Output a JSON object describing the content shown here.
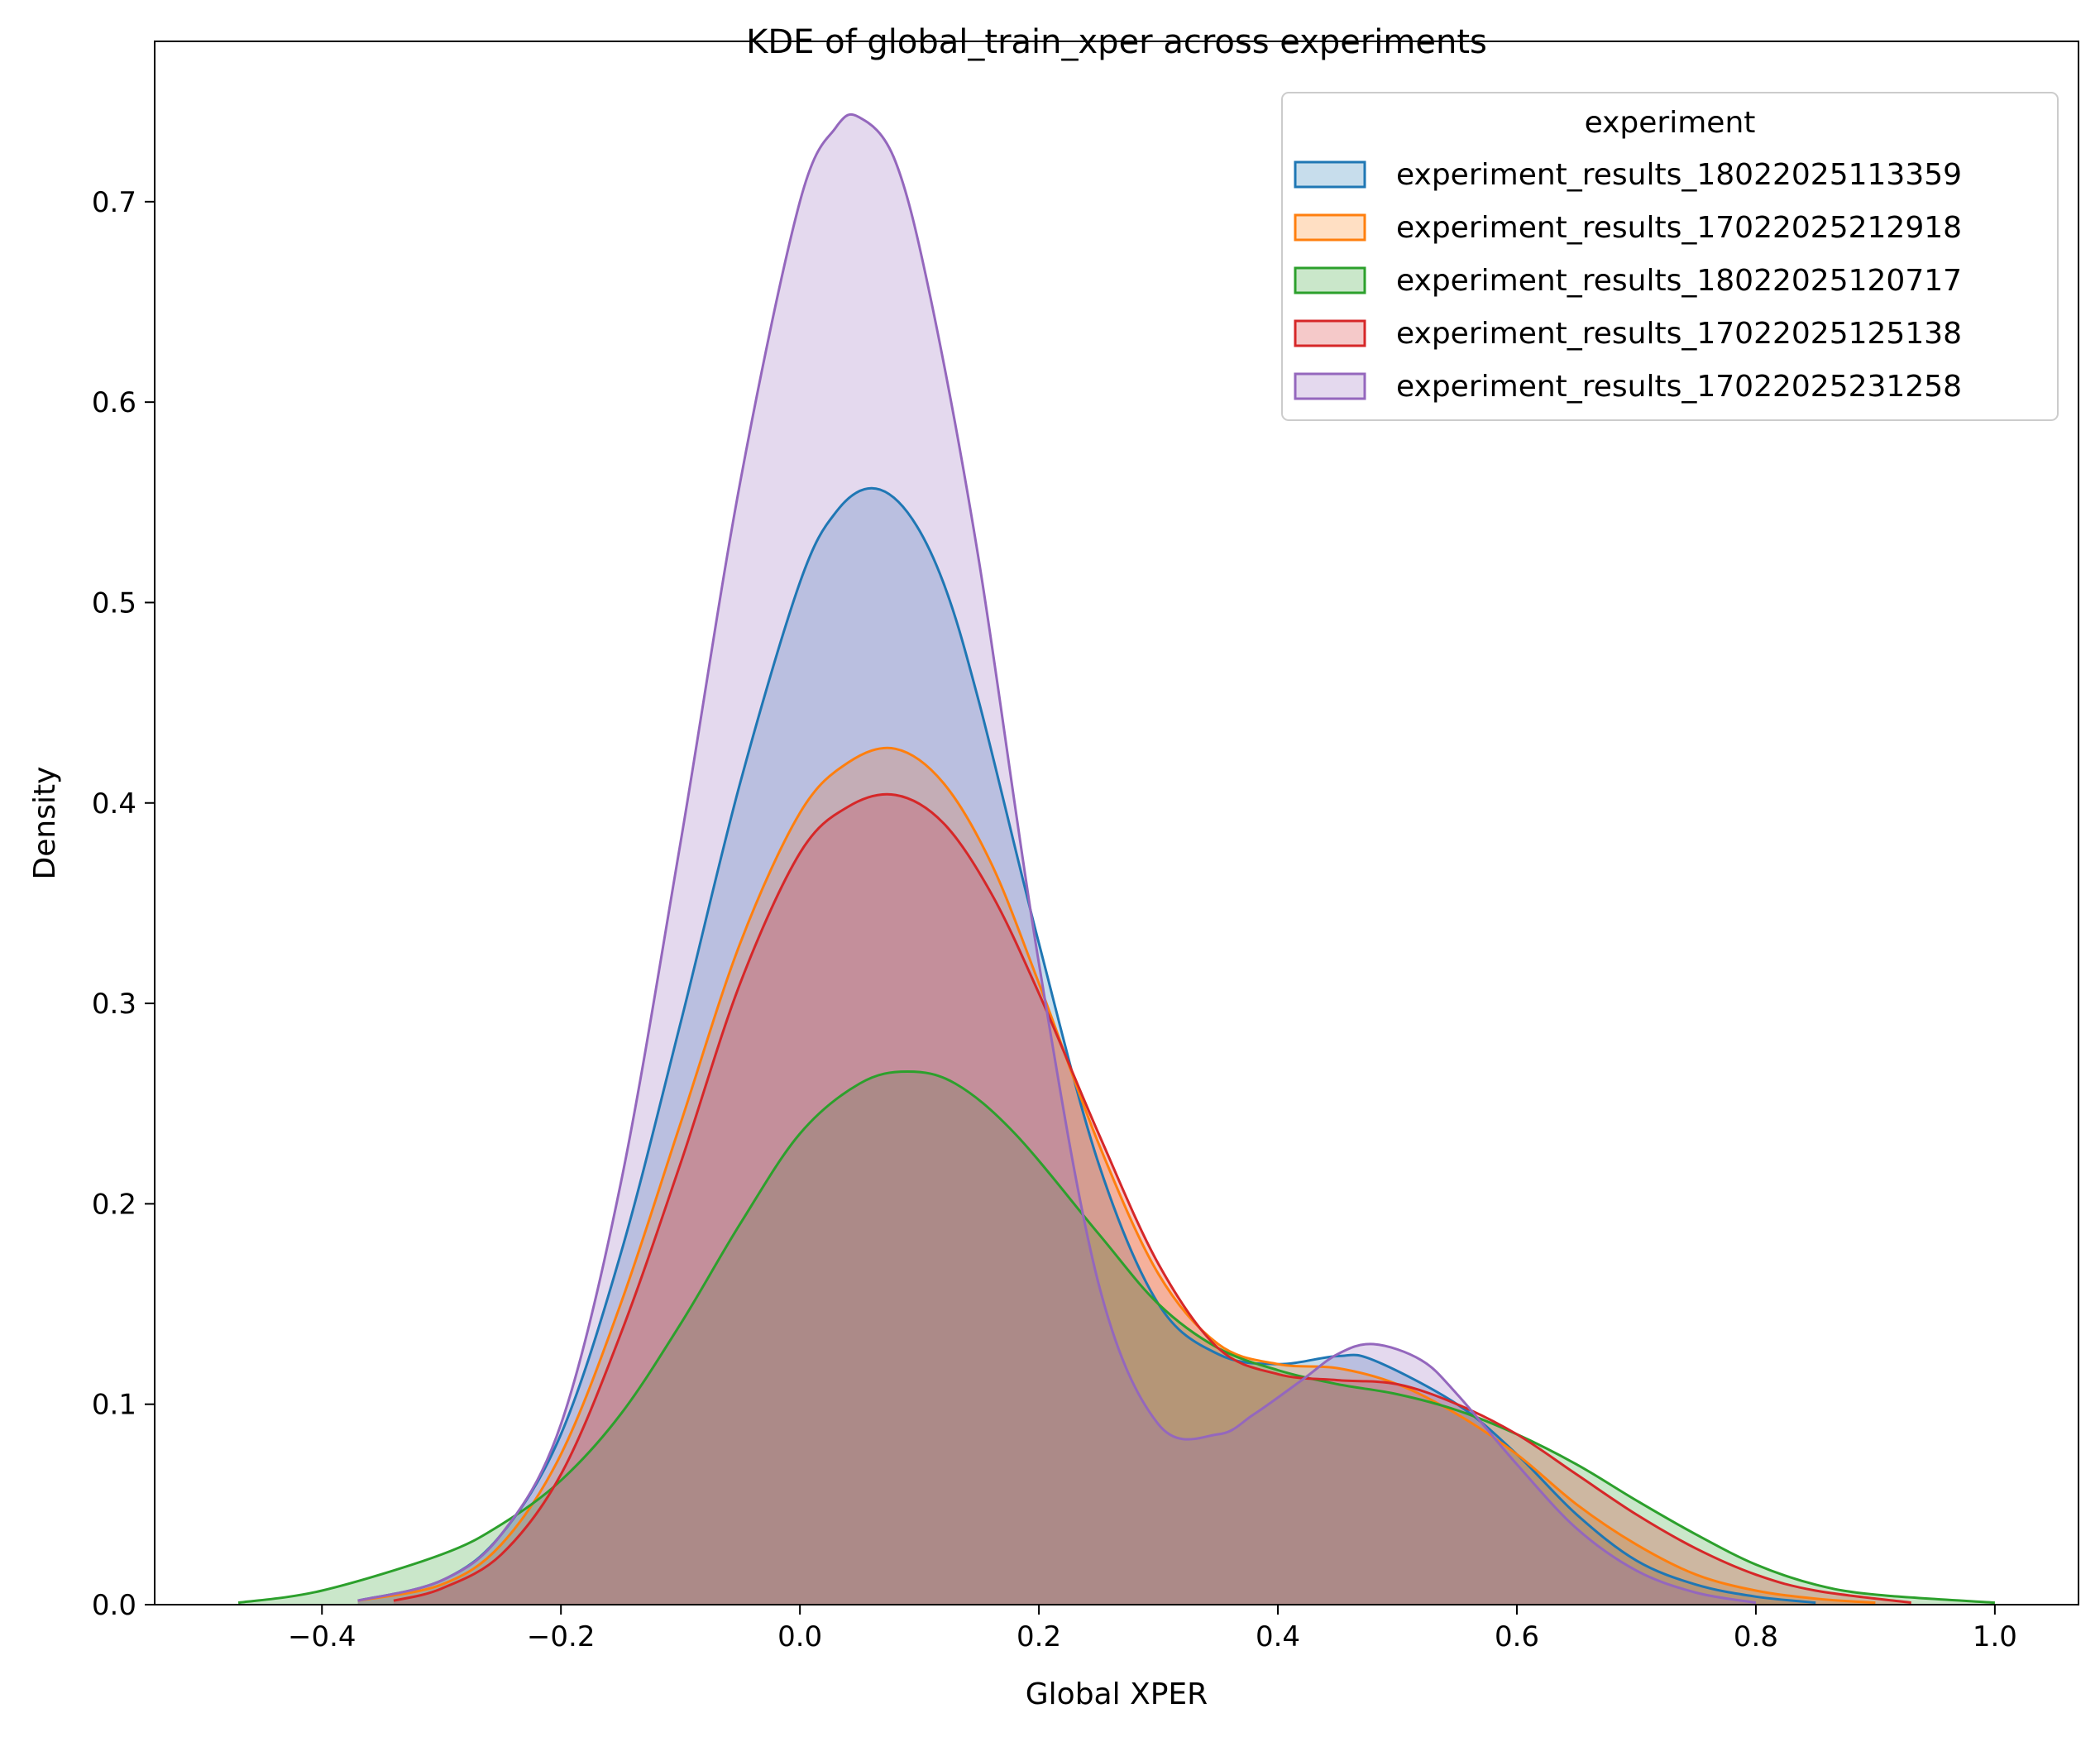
{
  "chart_data": {
    "type": "area",
    "title": "KDE of global_train_xper across experiments",
    "xlabel": "Global XPER",
    "ylabel": "Density",
    "xlim": [
      -0.54,
      1.07
    ],
    "ylim": [
      0,
      0.78
    ],
    "x_ticks": [
      -0.4,
      -0.2,
      0.0,
      0.2,
      0.4,
      0.6,
      0.8,
      1.0
    ],
    "x_tick_labels": [
      "−0.4",
      "−0.2",
      "0.0",
      "0.2",
      "0.4",
      "0.6",
      "0.8",
      "1.0"
    ],
    "y_ticks": [
      0.0,
      0.1,
      0.2,
      0.3,
      0.4,
      0.5,
      0.6,
      0.7
    ],
    "y_tick_labels": [
      "0.0",
      "0.1",
      "0.2",
      "0.3",
      "0.4",
      "0.5",
      "0.6",
      "0.7"
    ],
    "grid": false,
    "legend": {
      "title": "experiment",
      "placement": "top-right"
    },
    "series": [
      {
        "name": "experiment_results_18022025113359",
        "color": "#1f77b4",
        "x": [
          -0.37,
          -0.3,
          -0.25,
          -0.2,
          -0.15,
          -0.1,
          -0.05,
          0.0,
          0.03,
          0.06,
          0.09,
          0.12,
          0.15,
          0.2,
          0.25,
          0.3,
          0.35,
          0.4,
          0.45,
          0.48,
          0.55,
          0.6,
          0.65,
          0.7,
          0.75,
          0.8,
          0.85
        ],
        "y": [
          0.002,
          0.012,
          0.035,
          0.085,
          0.175,
          0.29,
          0.41,
          0.51,
          0.545,
          0.557,
          0.545,
          0.51,
          0.45,
          0.33,
          0.22,
          0.15,
          0.125,
          0.12,
          0.124,
          0.122,
          0.1,
          0.075,
          0.045,
          0.022,
          0.01,
          0.004,
          0.001
        ]
      },
      {
        "name": "experiment_results_17022025212918",
        "color": "#ff7f0e",
        "x": [
          -0.37,
          -0.3,
          -0.25,
          -0.2,
          -0.15,
          -0.1,
          -0.05,
          0.0,
          0.04,
          0.08,
          0.12,
          0.16,
          0.2,
          0.25,
          0.3,
          0.35,
          0.4,
          0.45,
          0.5,
          0.55,
          0.6,
          0.65,
          0.7,
          0.75,
          0.8,
          0.85,
          0.9
        ],
        "y": [
          0.002,
          0.01,
          0.03,
          0.075,
          0.15,
          0.24,
          0.33,
          0.395,
          0.42,
          0.427,
          0.41,
          0.37,
          0.31,
          0.23,
          0.165,
          0.13,
          0.12,
          0.118,
          0.11,
          0.095,
          0.075,
          0.05,
          0.03,
          0.015,
          0.007,
          0.003,
          0.001
        ]
      },
      {
        "name": "experiment_results_18022025120717",
        "color": "#2ca02c",
        "x": [
          -0.47,
          -0.4,
          -0.3,
          -0.25,
          -0.2,
          -0.15,
          -0.1,
          -0.05,
          0.0,
          0.05,
          0.09,
          0.13,
          0.18,
          0.25,
          0.3,
          0.35,
          0.4,
          0.45,
          0.5,
          0.55,
          0.6,
          0.65,
          0.7,
          0.75,
          0.8,
          0.85,
          0.9,
          1.0
        ],
        "y": [
          0.001,
          0.007,
          0.025,
          0.04,
          0.062,
          0.095,
          0.14,
          0.19,
          0.235,
          0.26,
          0.266,
          0.26,
          0.235,
          0.185,
          0.15,
          0.128,
          0.117,
          0.11,
          0.105,
          0.097,
          0.085,
          0.07,
          0.052,
          0.035,
          0.02,
          0.01,
          0.005,
          0.001
        ]
      },
      {
        "name": "experiment_results_17022025125138",
        "color": "#d62728",
        "x": [
          -0.34,
          -0.3,
          -0.25,
          -0.2,
          -0.15,
          -0.1,
          -0.05,
          0.0,
          0.04,
          0.08,
          0.12,
          0.16,
          0.2,
          0.25,
          0.3,
          0.35,
          0.4,
          0.45,
          0.5,
          0.55,
          0.6,
          0.65,
          0.7,
          0.75,
          0.8,
          0.85,
          0.93
        ],
        "y": [
          0.002,
          0.008,
          0.025,
          0.065,
          0.135,
          0.22,
          0.31,
          0.375,
          0.398,
          0.404,
          0.39,
          0.355,
          0.305,
          0.235,
          0.17,
          0.128,
          0.115,
          0.112,
          0.11,
          0.1,
          0.085,
          0.065,
          0.045,
          0.028,
          0.015,
          0.007,
          0.001
        ]
      },
      {
        "name": "experiment_results_17022025231258",
        "color": "#9467bd",
        "x": [
          -0.37,
          -0.3,
          -0.25,
          -0.2,
          -0.15,
          -0.1,
          -0.05,
          0.0,
          0.03,
          0.05,
          0.08,
          0.11,
          0.15,
          0.2,
          0.25,
          0.3,
          0.35,
          0.38,
          0.42,
          0.45,
          0.48,
          0.52,
          0.55,
          0.6,
          0.65,
          0.7,
          0.75,
          0.8
        ],
        "y": [
          0.002,
          0.012,
          0.035,
          0.09,
          0.21,
          0.38,
          0.56,
          0.7,
          0.737,
          0.742,
          0.72,
          0.65,
          0.52,
          0.32,
          0.16,
          0.09,
          0.085,
          0.095,
          0.112,
          0.125,
          0.13,
          0.122,
          0.105,
          0.07,
          0.038,
          0.017,
          0.006,
          0.001
        ]
      }
    ]
  }
}
